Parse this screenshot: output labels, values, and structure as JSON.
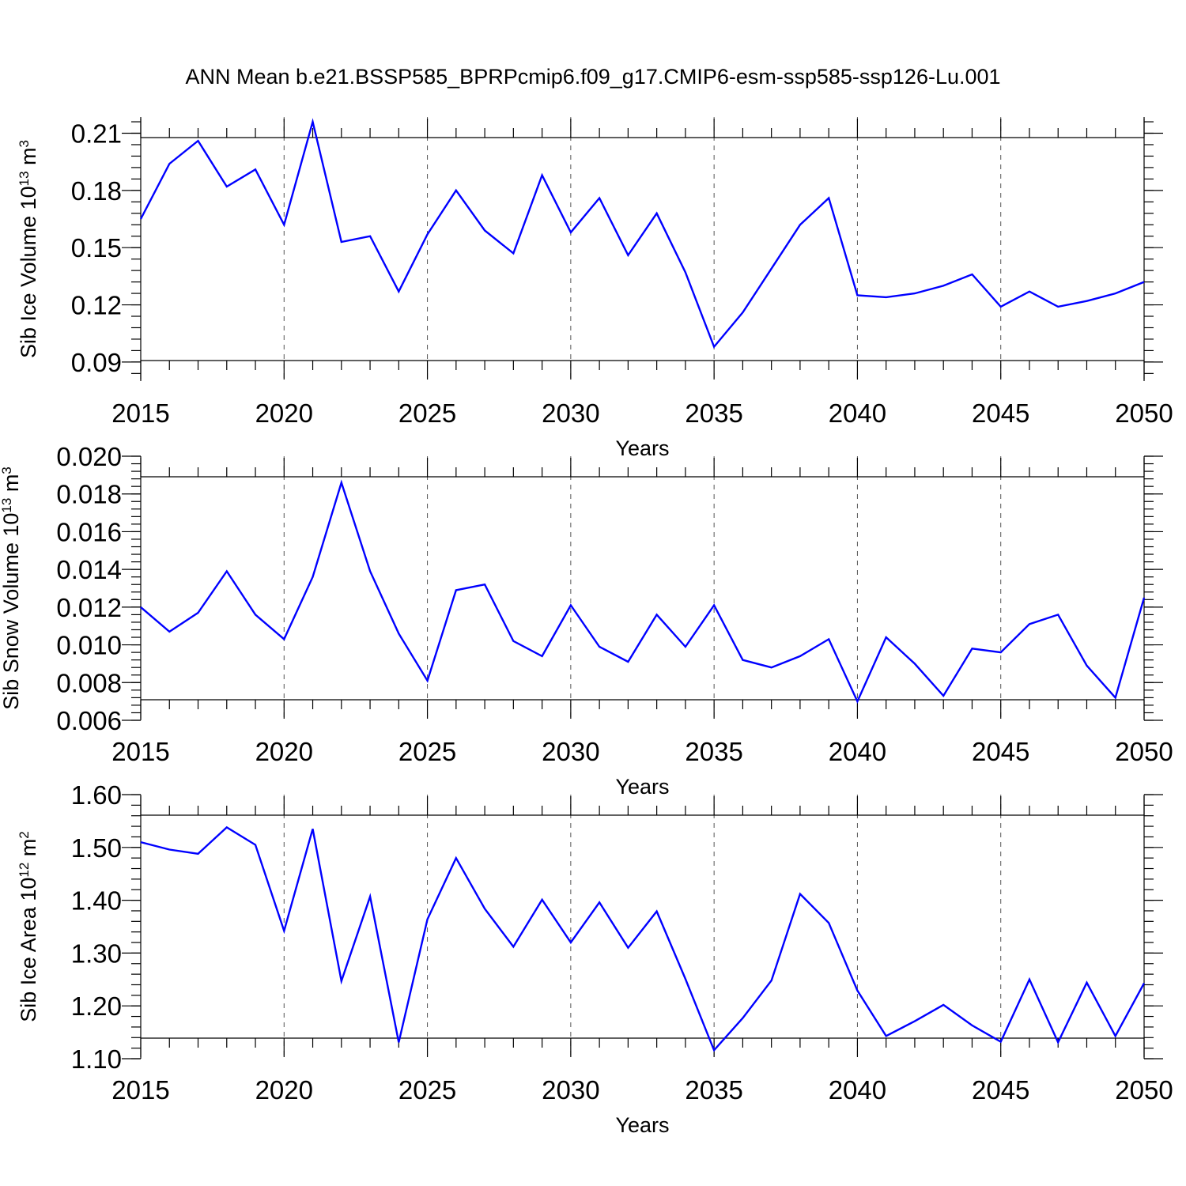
{
  "title": "ANN Mean b.e21.BSSP585_BPRPcmip6.f09_g17.CMIP6-esm-ssp585-ssp126-Lu.001",
  "colors": {
    "line": "#0000ff",
    "axis": "#000000",
    "grid": "#555555"
  },
  "chart_data": [
    {
      "type": "line",
      "xlabel": "Years",
      "ylabel": {
        "prefix": "Sib Ice Volume 10",
        "exponent": "13",
        "unit": " m",
        "unit_exponent": "3"
      },
      "xlim": [
        2015,
        2050
      ],
      "ylim": [
        0.08,
        0.2185
      ],
      "xticks": [
        2015,
        2020,
        2025,
        2030,
        2035,
        2040,
        2045,
        2050
      ],
      "yticks": [
        0.09,
        0.12,
        0.15,
        0.18,
        0.21
      ],
      "ytick_labels": [
        "0.09",
        "0.12",
        "0.15",
        "0.18",
        "0.21"
      ],
      "ymin_step": 0.006,
      "grid_x": [
        2020,
        2025,
        2030,
        2035,
        2040,
        2045
      ],
      "x": [
        2015,
        2016,
        2017,
        2018,
        2019,
        2020,
        2021,
        2022,
        2023,
        2024,
        2025,
        2026,
        2027,
        2028,
        2029,
        2030,
        2031,
        2032,
        2033,
        2034,
        2035,
        2036,
        2037,
        2038,
        2039,
        2040,
        2041,
        2042,
        2043,
        2044,
        2045,
        2046,
        2047,
        2048,
        2049,
        2050
      ],
      "y": [
        0.165,
        0.194,
        0.206,
        0.182,
        0.191,
        0.162,
        0.216,
        0.153,
        0.156,
        0.127,
        0.157,
        0.18,
        0.159,
        0.147,
        0.188,
        0.158,
        0.176,
        0.146,
        0.168,
        0.137,
        0.098,
        0.116,
        0.139,
        0.162,
        0.176,
        0.125,
        0.124,
        0.126,
        0.13,
        0.136,
        0.119,
        0.127,
        0.119,
        0.122,
        0.126,
        0.132
      ]
    },
    {
      "type": "line",
      "xlabel": "Years",
      "ylabel": {
        "prefix": "Sib Snow Volume 10",
        "exponent": "13",
        "unit": " m",
        "unit_exponent": "3"
      },
      "xlim": [
        2015,
        2050
      ],
      "ylim": [
        0.006,
        0.02
      ],
      "xticks": [
        2015,
        2020,
        2025,
        2030,
        2035,
        2040,
        2045,
        2050
      ],
      "yticks": [
        0.006,
        0.008,
        0.01,
        0.012,
        0.014,
        0.016,
        0.018,
        0.02
      ],
      "ytick_labels": [
        "0.006",
        "0.008",
        "0.010",
        "0.012",
        "0.014",
        "0.016",
        "0.018",
        "0.020"
      ],
      "ymin_step": 0.0004,
      "grid_x": [
        2020,
        2025,
        2030,
        2035,
        2040,
        2045
      ],
      "x": [
        2015,
        2016,
        2017,
        2018,
        2019,
        2020,
        2021,
        2022,
        2023,
        2024,
        2025,
        2026,
        2027,
        2028,
        2029,
        2030,
        2031,
        2032,
        2033,
        2034,
        2035,
        2036,
        2037,
        2038,
        2039,
        2040,
        2041,
        2042,
        2043,
        2044,
        2045,
        2046,
        2047,
        2048,
        2049,
        2050
      ],
      "y": [
        0.012,
        0.0107,
        0.0117,
        0.0139,
        0.0116,
        0.0103,
        0.0136,
        0.0186,
        0.0139,
        0.0106,
        0.0081,
        0.0129,
        0.0132,
        0.0102,
        0.0094,
        0.0121,
        0.0099,
        0.0091,
        0.0116,
        0.0099,
        0.0121,
        0.0092,
        0.0088,
        0.0094,
        0.0103,
        0.007,
        0.0104,
        0.009,
        0.0073,
        0.0098,
        0.0096,
        0.0111,
        0.0116,
        0.0089,
        0.0072,
        0.0125
      ]
    },
    {
      "type": "line",
      "xlabel": "Years",
      "ylabel": {
        "prefix": "Sib Ice Area 10",
        "exponent": "12",
        "unit": " m",
        "unit_exponent": "2"
      },
      "xlim": [
        2015,
        2050
      ],
      "ylim": [
        1.1,
        1.6
      ],
      "xticks": [
        2015,
        2020,
        2025,
        2030,
        2035,
        2040,
        2045,
        2050
      ],
      "yticks": [
        1.1,
        1.2,
        1.3,
        1.4,
        1.5,
        1.6
      ],
      "ytick_labels": [
        "1.10",
        "1.20",
        "1.30",
        "1.40",
        "1.50",
        "1.60"
      ],
      "ymin_step": 0.02,
      "grid_x": [
        2020,
        2025,
        2030,
        2035,
        2040,
        2045
      ],
      "x": [
        2015,
        2016,
        2017,
        2018,
        2019,
        2020,
        2021,
        2022,
        2023,
        2024,
        2025,
        2026,
        2027,
        2028,
        2029,
        2030,
        2031,
        2032,
        2033,
        2034,
        2035,
        2036,
        2037,
        2038,
        2039,
        2040,
        2041,
        2042,
        2043,
        2044,
        2045,
        2046,
        2047,
        2048,
        2049,
        2050
      ],
      "y": [
        1.51,
        1.496,
        1.488,
        1.538,
        1.505,
        1.342,
        1.535,
        1.247,
        1.407,
        1.131,
        1.364,
        1.48,
        1.384,
        1.312,
        1.401,
        1.32,
        1.396,
        1.31,
        1.379,
        1.251,
        1.116,
        1.177,
        1.248,
        1.412,
        1.357,
        1.229,
        1.143,
        1.171,
        1.202,
        1.163,
        1.132,
        1.25,
        1.131,
        1.244,
        1.143,
        1.243
      ]
    }
  ]
}
